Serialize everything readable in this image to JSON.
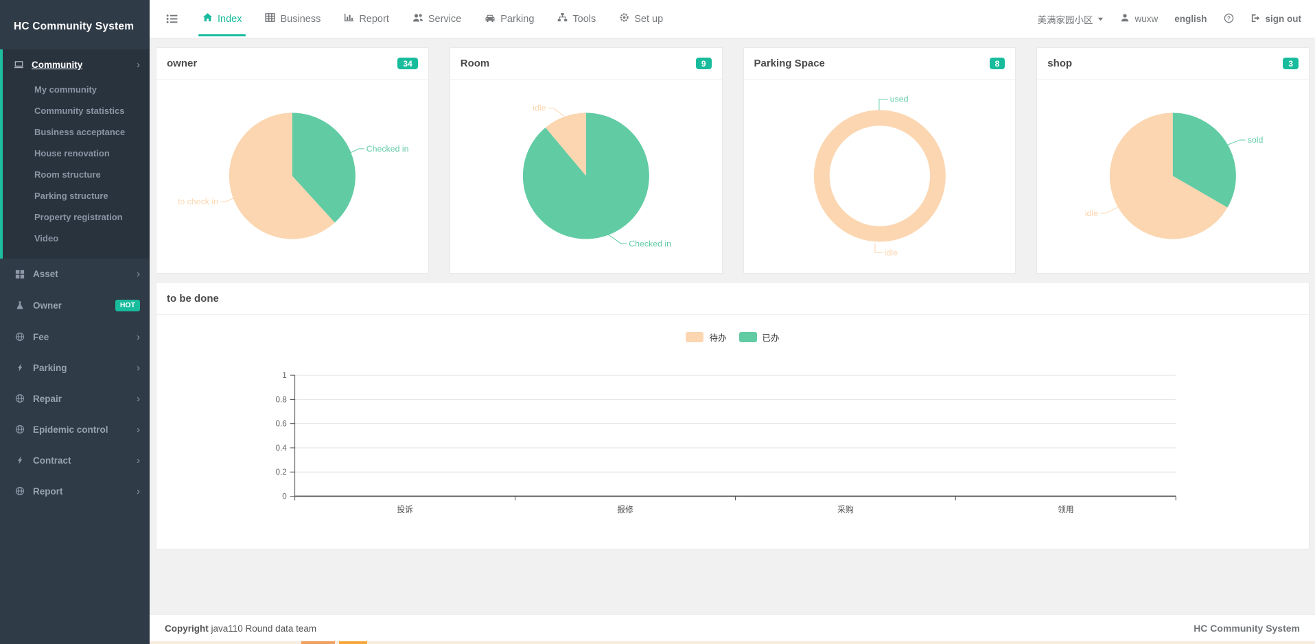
{
  "colors": {
    "accent_green": "#18bc9c",
    "pie_green": "#61cba4",
    "pie_peach": "#fbd6b0",
    "sidebar_bg": "#2f3b47",
    "sidebar_active_bg": "#29333e",
    "strip_bg": "#f8ecdf",
    "strip_orange_1": "#eea160",
    "strip_orange_2": "#f6a73e"
  },
  "sidebar": {
    "title": "HC Community System",
    "sections": [
      {
        "label": "Community",
        "expanded": true,
        "items": [
          "My community",
          "Community statistics",
          "Business acceptance",
          "House renovation",
          "Room structure",
          "Parking structure",
          "Property registration",
          "Video"
        ]
      },
      {
        "label": "Asset"
      },
      {
        "label": "Owner",
        "badge": "HOT"
      },
      {
        "label": "Fee"
      },
      {
        "label": "Parking"
      },
      {
        "label": "Repair"
      },
      {
        "label": "Epidemic control"
      },
      {
        "label": "Contract"
      },
      {
        "label": "Report"
      }
    ]
  },
  "topnav": {
    "tabs": [
      {
        "label": "Index",
        "active": true
      },
      {
        "label": "Business"
      },
      {
        "label": "Report"
      },
      {
        "label": "Service"
      },
      {
        "label": "Parking"
      },
      {
        "label": "Tools"
      },
      {
        "label": "Set up"
      }
    ],
    "community_selector": "美满家园小区",
    "username": "wuxw",
    "language": "english",
    "signout_label": "sign out"
  },
  "footer": {
    "copyright_bold": "Copyright",
    "copyright_rest": "java110 Round data team",
    "brand": "HC Community System"
  },
  "chart_data": [
    {
      "type": "pie",
      "title": "owner",
      "badge": "34",
      "slices": [
        {
          "label": "Checked in",
          "value": 13,
          "color": "#61cba4"
        },
        {
          "label": "to check in",
          "value": 21,
          "color": "#fbd6b0"
        }
      ]
    },
    {
      "type": "pie",
      "title": "Room",
      "badge": "9",
      "slices": [
        {
          "label": "Checked in",
          "value": 8,
          "color": "#61cba4"
        },
        {
          "label": "idle",
          "value": 1,
          "color": "#fbd6b0"
        }
      ]
    },
    {
      "type": "donut",
      "title": "Parking Space",
      "badge": "8",
      "slices": [
        {
          "label": "used",
          "value": 0,
          "color": "#61cba4"
        },
        {
          "label": "idle",
          "value": 8,
          "color": "#fbd6b0"
        }
      ]
    },
    {
      "type": "pie",
      "title": "shop",
      "badge": "3",
      "slices": [
        {
          "label": "sold",
          "value": 1,
          "color": "#61cba4"
        },
        {
          "label": "idle",
          "value": 2,
          "color": "#fbd6b0"
        }
      ]
    },
    {
      "type": "bar",
      "title": "to be done",
      "categories": [
        "投诉",
        "报修",
        "采购",
        "领用"
      ],
      "series": [
        {
          "name": "待办",
          "color": "#fbd6b0",
          "values": [
            0,
            0,
            0,
            0
          ]
        },
        {
          "name": "已办",
          "color": "#61cba4",
          "values": [
            0,
            0,
            0,
            0
          ]
        }
      ],
      "ylim": [
        0,
        1
      ],
      "yticks": [
        1,
        0.8,
        0.6,
        0.4,
        0.2,
        0
      ],
      "grid": true,
      "legend_position": "top-center"
    }
  ]
}
